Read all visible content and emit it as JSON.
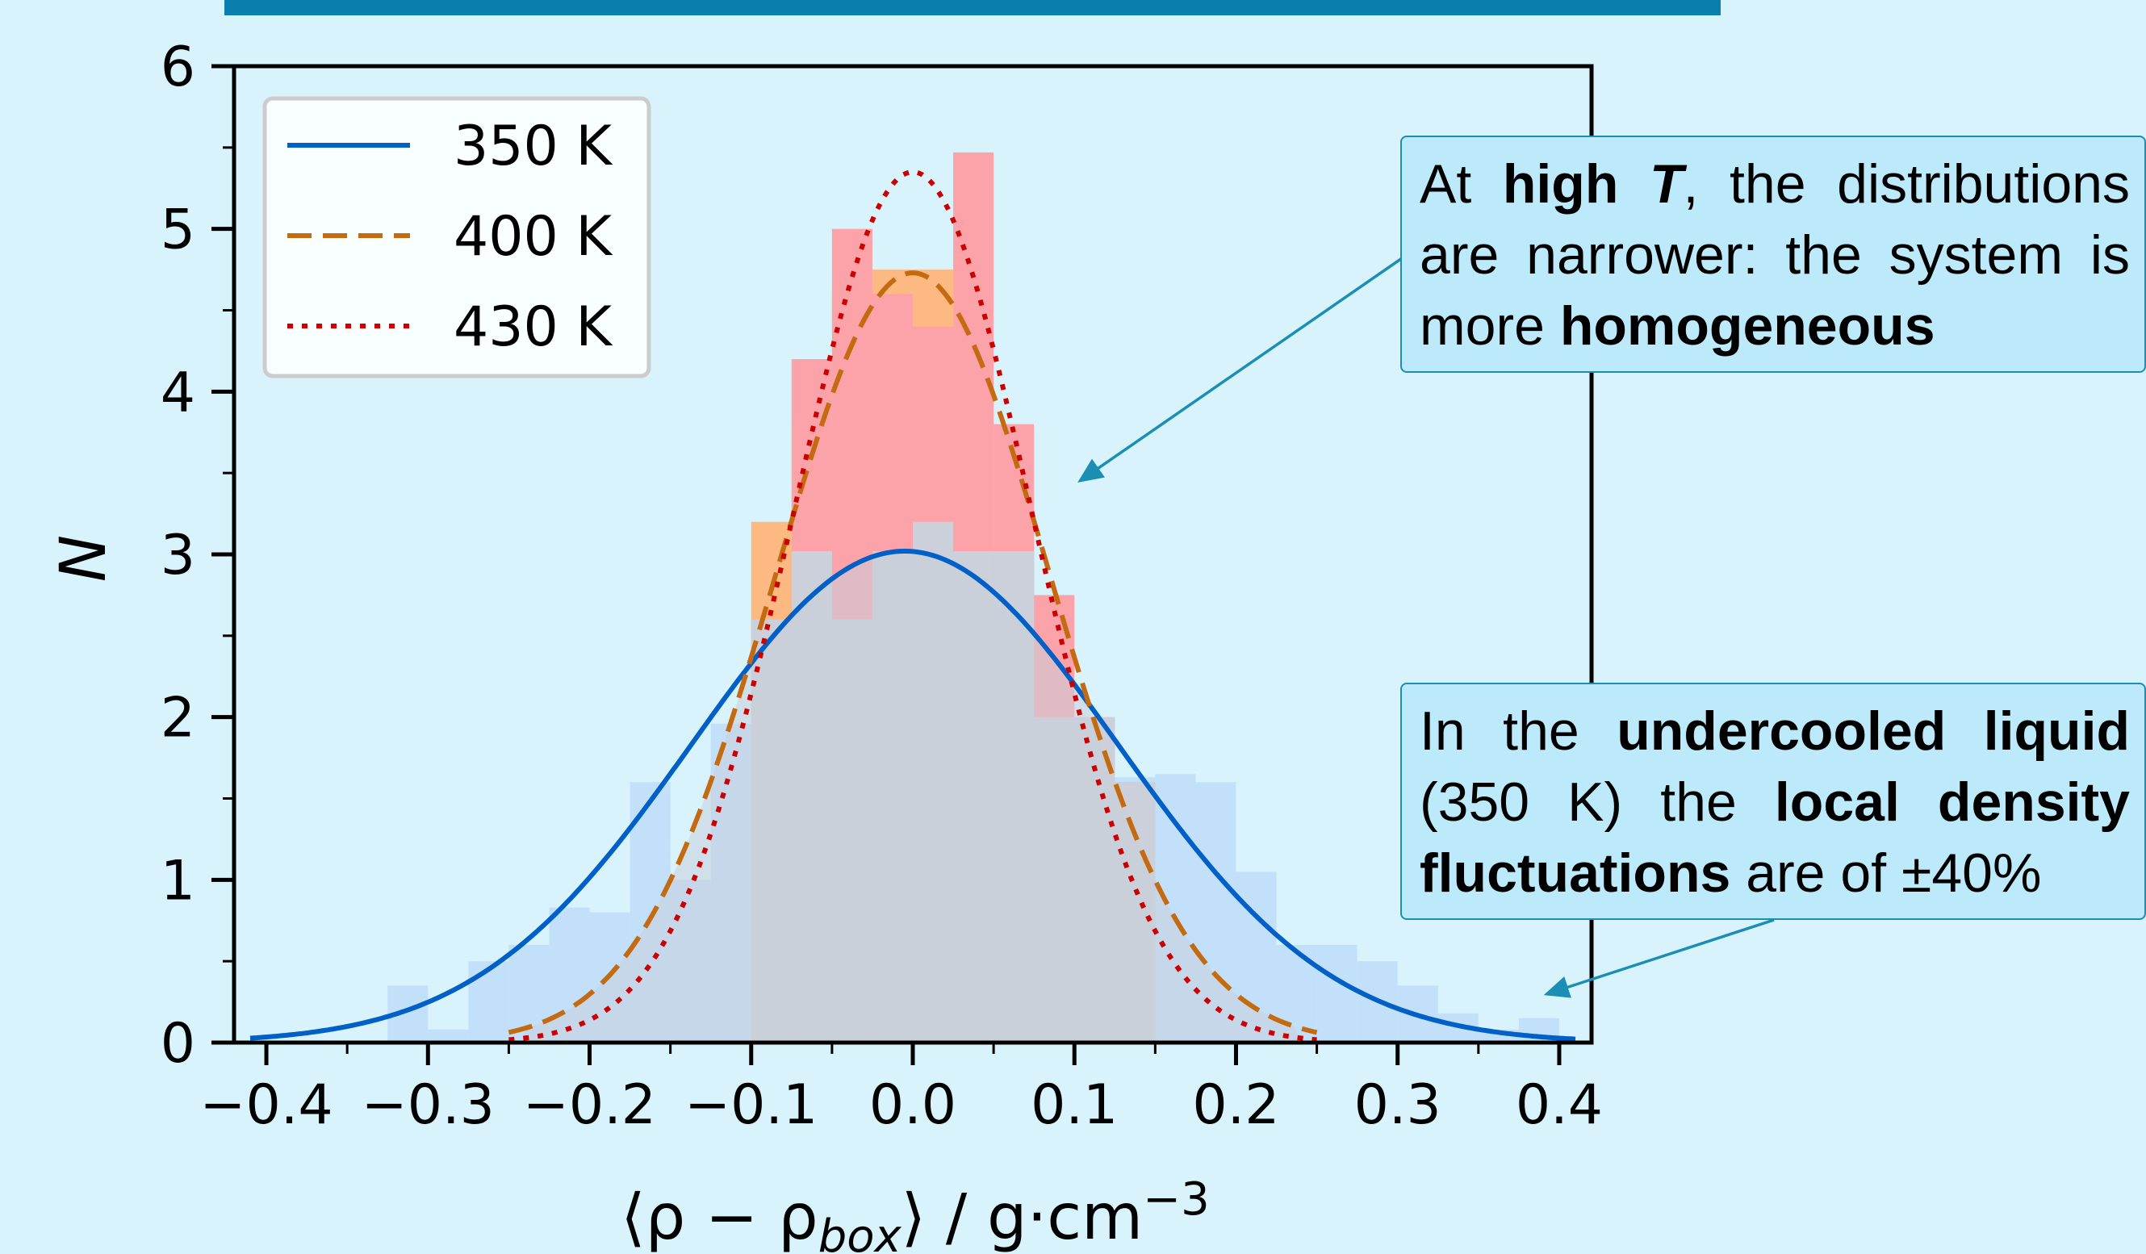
{
  "callouts": {
    "high": [
      {
        "t": "At ",
        "b": false
      },
      {
        "t": "high ",
        "b": true
      },
      {
        "t": "T",
        "b": true,
        "i": true
      },
      {
        "t": ", the distributions are narrower: the system is more ",
        "b": false
      },
      {
        "t": "homogeneous",
        "b": true
      }
    ],
    "low": [
      {
        "t": "In the ",
        "b": false
      },
      {
        "t": "undercooled liquid",
        "b": true
      },
      {
        "t": " (350 K) the ",
        "b": false
      },
      {
        "t": "local density fluctuations",
        "b": true
      },
      {
        "t": " are of ±40%",
        "b": false
      }
    ]
  },
  "colors": {
    "s350": "#0060c8",
    "s400": "#c46a10",
    "s430": "#cc0000",
    "h350": "#c2e0fa",
    "h400": "#fdb982",
    "h430": "#fca3a9",
    "overlap": "#cbd0da",
    "arrow": "#1a8fb3"
  },
  "chart_data": {
    "type": "histogram",
    "xlabel": "⟨ρ − ρ_box⟩ / g·cm^−3",
    "ylabel": "N",
    "xlim": [
      -0.42,
      0.42
    ],
    "ylim": [
      0,
      6
    ],
    "xticks": [
      "−0.4",
      "−0.3",
      "−0.2",
      "−0.1",
      "0.0",
      "0.1",
      "0.2",
      "0.3",
      "0.4"
    ],
    "yticks": [
      "0",
      "1",
      "2",
      "3",
      "4",
      "5",
      "6"
    ],
    "legend_position": "top-left",
    "series": [
      {
        "name": "350 K",
        "mean": -0.005,
        "std": 0.132,
        "amplitude": 3.02,
        "line": "solid",
        "bin_width": 0.025,
        "bins": [
          [
            -0.325,
            0.35
          ],
          [
            -0.3,
            0.08
          ],
          [
            -0.275,
            0.5
          ],
          [
            -0.25,
            0.6
          ],
          [
            -0.225,
            0.83
          ],
          [
            -0.2,
            0.8
          ],
          [
            -0.175,
            1.6
          ],
          [
            -0.15,
            1.0
          ],
          [
            -0.125,
            1.96
          ],
          [
            -0.1,
            2.6
          ],
          [
            -0.075,
            3.02
          ],
          [
            -0.05,
            2.6
          ],
          [
            -0.025,
            3.02
          ],
          [
            0.0,
            3.2
          ],
          [
            0.025,
            3.02
          ],
          [
            0.05,
            3.02
          ],
          [
            0.075,
            2.2
          ],
          [
            0.1,
            2.0
          ],
          [
            0.125,
            1.63
          ],
          [
            0.15,
            1.65
          ],
          [
            0.175,
            1.6
          ],
          [
            0.2,
            1.05
          ],
          [
            0.225,
            0.6
          ],
          [
            0.25,
            0.6
          ],
          [
            0.275,
            0.5
          ],
          [
            0.3,
            0.35
          ],
          [
            0.325,
            0.18
          ],
          [
            0.35,
            0.08
          ],
          [
            0.375,
            0.15
          ]
        ]
      },
      {
        "name": "400 K",
        "mean": 0.0,
        "std": 0.085,
        "amplitude": 4.73,
        "line": "dashed",
        "bin_width": 0.025,
        "bins": [
          [
            -0.1,
            3.2
          ],
          [
            -0.075,
            3.8
          ],
          [
            -0.05,
            4.6
          ],
          [
            -0.025,
            4.75
          ],
          [
            0.0,
            4.75
          ],
          [
            0.025,
            4.2
          ],
          [
            0.05,
            3.75
          ],
          [
            0.075,
            2.0
          ],
          [
            0.1,
            2.0
          ],
          [
            0.125,
            1.6
          ]
        ]
      },
      {
        "name": "430 K",
        "mean": 0.0,
        "std": 0.074,
        "amplitude": 5.35,
        "line": "dotted",
        "bin_width": 0.025,
        "bins": [
          [
            -0.075,
            4.2
          ],
          [
            -0.05,
            5.0
          ],
          [
            -0.025,
            4.6
          ],
          [
            0.0,
            4.4
          ],
          [
            0.025,
            5.47
          ],
          [
            0.05,
            3.8
          ],
          [
            0.075,
            2.75
          ]
        ]
      }
    ]
  }
}
